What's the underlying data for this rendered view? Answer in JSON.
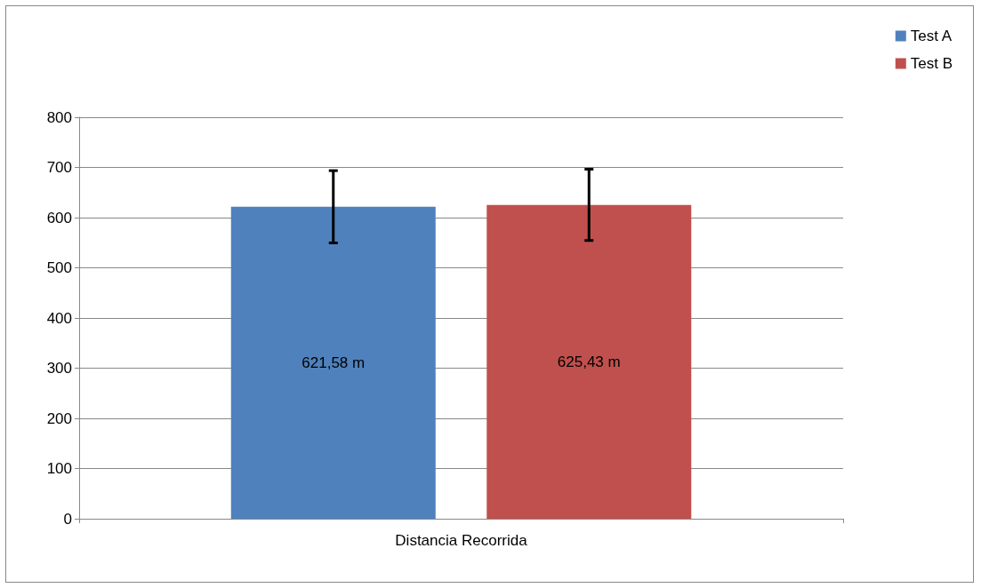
{
  "chart_data": {
    "type": "bar",
    "categories": [
      "Distancia Recorrida"
    ],
    "series": [
      {
        "name": "Test A",
        "color": "#4f81bd",
        "values": [
          621.58
        ],
        "errors": [
          72
        ],
        "value_labels": [
          "621,58 m"
        ]
      },
      {
        "name": "Test B",
        "color": "#c0504d",
        "values": [
          625.43
        ],
        "errors": [
          71
        ],
        "value_labels": [
          "625,43 m"
        ]
      }
    ],
    "ylim": [
      0,
      800
    ],
    "yticks": [
      0,
      100,
      200,
      300,
      400,
      500,
      600,
      700,
      800
    ],
    "grid": "y",
    "legend": "top right"
  }
}
